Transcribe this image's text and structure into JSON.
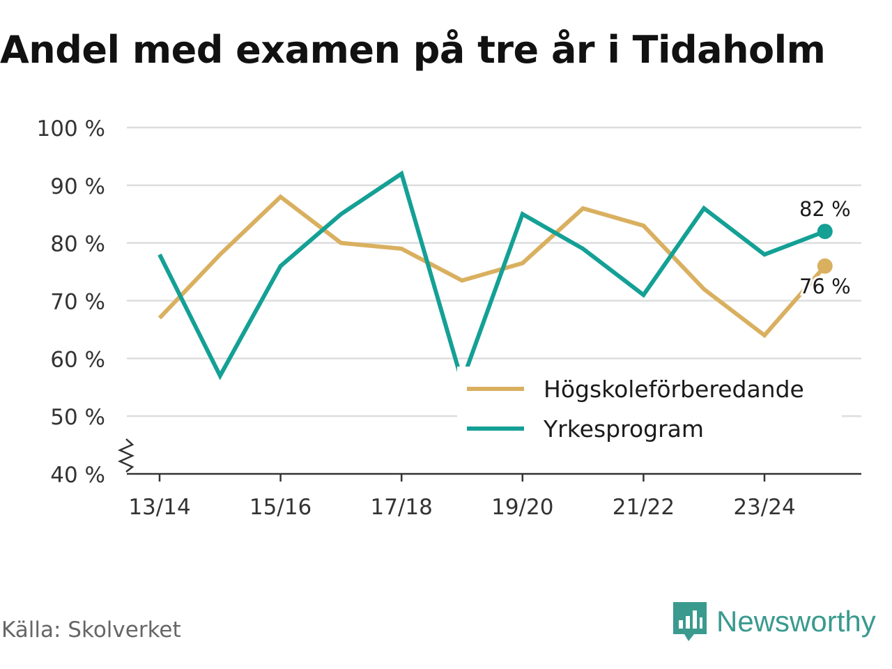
{
  "header": {
    "title": "Andel med examen på tre år i Tidaholm"
  },
  "footer": {
    "source": "Källa: Skolverket",
    "brand": "Newsworthy"
  },
  "colors": {
    "series_1": "#d9b060",
    "series_2": "#14a095",
    "grid": "#dddddd",
    "axis": "#333333"
  },
  "chart_data": {
    "type": "line",
    "title": "Andel med examen på tre år i Tidaholm",
    "x": [
      "13/14",
      "14/15",
      "15/16",
      "16/17",
      "17/18",
      "18/19",
      "19/20",
      "20/21",
      "21/22",
      "22/23",
      "23/24",
      "24/25"
    ],
    "x_tick_labels": [
      "13/14",
      "15/16",
      "17/18",
      "19/20",
      "21/22",
      "23/24"
    ],
    "y_tick_values": [
      40,
      50,
      60,
      70,
      80,
      90,
      100
    ],
    "y_tick_labels": [
      "40 %",
      "50 %",
      "60 %",
      "70 %",
      "80 %",
      "90 %",
      "100 %"
    ],
    "ylim": [
      40,
      100
    ],
    "xlabel": "",
    "ylabel": "",
    "grid": true,
    "legend_position": "bottom-right",
    "series": [
      {
        "name": "Högskoleförberedande",
        "color": "#d9b060",
        "values": [
          67,
          78,
          88,
          80,
          79,
          73.5,
          76.5,
          86,
          83,
          72,
          64,
          76
        ],
        "end_label": "76 %"
      },
      {
        "name": "Yrkesprogram",
        "color": "#14a095",
        "values": [
          78,
          57,
          76,
          85,
          92,
          56,
          85,
          79,
          71,
          86,
          78,
          82
        ],
        "end_label": "82 %"
      }
    ]
  }
}
